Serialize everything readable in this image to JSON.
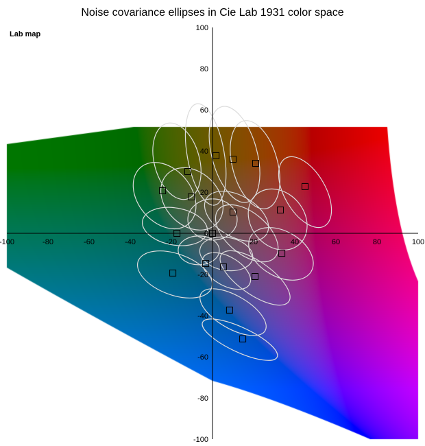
{
  "chart_data": {
    "type": "scatter",
    "title": "Noise covariance ellipses in Cie Lab 1931 color space",
    "map_label": "Lab map",
    "xlim": [
      -100,
      100
    ],
    "ylim": [
      -100,
      100
    ],
    "x_ticks": [
      -100,
      -80,
      -60,
      -40,
      -20,
      0,
      20,
      40,
      60,
      80,
      100
    ],
    "y_ticks": [
      -100,
      -80,
      -60,
      -40,
      -20,
      0,
      20,
      40,
      60,
      80,
      100
    ],
    "grid": false,
    "background": "Lab color gamut map (green top-left, red top-right, magenta right, violet bottom-right, blue bottom)",
    "marker_color": "#000000",
    "ellipse_color": "#dcdcdc",
    "points": [
      {
        "a": 1.7,
        "b": 37.7
      },
      {
        "a": 10,
        "b": 36
      },
      {
        "a": 21,
        "b": 34
      },
      {
        "a": -12,
        "b": 30
      },
      {
        "a": -24.3,
        "b": 20.7
      },
      {
        "a": 45,
        "b": 22.7
      },
      {
        "a": -10.3,
        "b": 17.7
      },
      {
        "a": 10,
        "b": 10.3
      },
      {
        "a": 33,
        "b": 11.3
      },
      {
        "a": -17.3,
        "b": 0
      },
      {
        "a": 0,
        "b": 0
      },
      {
        "a": 33.7,
        "b": -9.7
      },
      {
        "a": -3.3,
        "b": -14.7
      },
      {
        "a": 5.3,
        "b": -16.3
      },
      {
        "a": -19.3,
        "b": -19.3
      },
      {
        "a": 20.7,
        "b": -21
      },
      {
        "a": 8.3,
        "b": -37.3
      },
      {
        "a": 14.7,
        "b": -51.3
      }
    ],
    "ellipses": [
      {
        "a": -3.3,
        "b": 38.3,
        "ra": 9,
        "rb": 25,
        "angle": 10
      },
      {
        "a": 10.7,
        "b": 38.3,
        "ra": 11,
        "rb": 24,
        "angle": 15
      },
      {
        "a": 20.7,
        "b": 33.3,
        "ra": 11,
        "rb": 22,
        "angle": 15
      },
      {
        "a": -17.3,
        "b": 35,
        "ra": 11,
        "rb": 19,
        "angle": 15
      },
      {
        "a": -23.3,
        "b": 18.3,
        "ra": 13,
        "rb": 18,
        "angle": 40
      },
      {
        "a": 45,
        "b": 20,
        "ra": 10,
        "rb": 19,
        "angle": 30
      },
      {
        "a": -10,
        "b": 16.7,
        "ra": 13,
        "rb": 17,
        "angle": 45
      },
      {
        "a": 11.7,
        "b": 8.3,
        "ra": 17,
        "rb": 10,
        "angle": -30
      },
      {
        "a": 31.7,
        "b": 6.7,
        "ra": 13,
        "rb": 16,
        "angle": 40
      },
      {
        "a": -18.3,
        "b": 3.3,
        "ra": 16,
        "rb": 9,
        "angle": -10
      },
      {
        "a": 0,
        "b": 6.7,
        "ra": 12,
        "rb": 10,
        "angle": 0
      },
      {
        "a": 33.3,
        "b": -10,
        "ra": 17,
        "rb": 11,
        "angle": -30
      },
      {
        "a": -6.7,
        "b": -8.3,
        "ra": 10,
        "rb": 7,
        "angle": 0
      },
      {
        "a": 6.7,
        "b": -10,
        "ra": 13,
        "rb": 8,
        "angle": -10
      },
      {
        "a": -18.3,
        "b": -20,
        "ra": 19,
        "rb": 10,
        "angle": -20
      },
      {
        "a": 20.7,
        "b": -21.7,
        "ra": 20,
        "rb": 8,
        "angle": -35
      },
      {
        "a": 10,
        "b": -38.3,
        "ra": 18,
        "rb": 8,
        "angle": -30
      },
      {
        "a": 13.3,
        "b": -51.7,
        "ra": 20,
        "rb": 6,
        "angle": -25
      },
      {
        "a": 6.7,
        "b": -18.3,
        "ra": 13,
        "rb": 7,
        "angle": -30
      },
      {
        "a": 16.7,
        "b": 0,
        "ra": 18,
        "rb": 10,
        "angle": -40
      }
    ]
  }
}
